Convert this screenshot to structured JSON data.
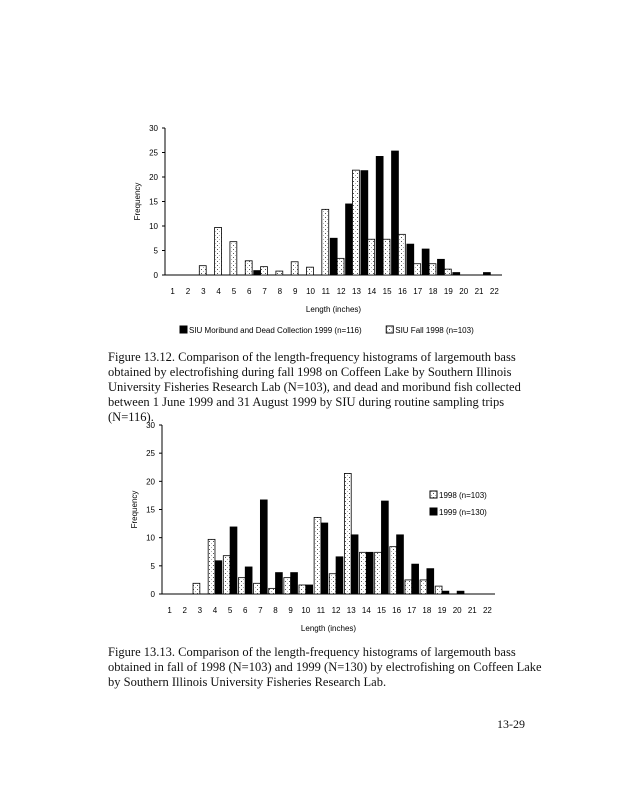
{
  "chart_data": [
    {
      "type": "bar",
      "categories": [
        "1",
        "2",
        "3",
        "4",
        "5",
        "6",
        "7",
        "8",
        "9",
        "10",
        "11",
        "12",
        "13",
        "14",
        "15",
        "16",
        "17",
        "18",
        "19",
        "20",
        "21",
        "22"
      ],
      "series": [
        {
          "name": "SIU Moribund and Dead Collection 1999 (n=116)",
          "color": "#000000",
          "fill": "solid",
          "values": [
            0,
            0,
            0,
            0,
            0,
            0,
            0.9,
            0,
            0,
            0,
            0,
            7.5,
            14.5,
            21.3,
            24.2,
            25.3,
            6.3,
            5.3,
            3.2,
            0.5,
            0,
            0.5
          ]
        },
        {
          "name": "SIU Fall 1998 (n=103)",
          "color": "#ffffff",
          "fill": "stippled",
          "values": [
            0,
            0,
            1.9,
            9.7,
            6.8,
            2.9,
            1.7,
            0.8,
            2.7,
            1.6,
            13.4,
            3.4,
            21.4,
            7.3,
            7.3,
            8.3,
            2.3,
            2.3,
            1.2,
            0,
            0,
            0
          ]
        }
      ],
      "xlabel": "Length (inches)",
      "ylabel": "Frequency",
      "ylim": [
        0,
        30
      ],
      "yticks": [
        0,
        5,
        10,
        15,
        20,
        25,
        30
      ],
      "legend": "bottom",
      "grid": false
    },
    {
      "type": "bar",
      "categories": [
        "1",
        "2",
        "3",
        "4",
        "5",
        "6",
        "7",
        "8",
        "9",
        "10",
        "11",
        "12",
        "13",
        "14",
        "15",
        "16",
        "17",
        "18",
        "19",
        "20",
        "21",
        "22"
      ],
      "series": [
        {
          "name": "1998 (n=103)",
          "color": "#ffffff",
          "fill": "stippled",
          "values": [
            0,
            0,
            1.9,
            9.7,
            6.8,
            2.9,
            1.9,
            1.0,
            2.9,
            1.6,
            13.6,
            3.6,
            21.4,
            7.4,
            7.4,
            8.4,
            2.5,
            2.5,
            1.4,
            0,
            0,
            0
          ]
        },
        {
          "name": "1999 (n=130)",
          "color": "#000000",
          "fill": "solid",
          "values": [
            0,
            0,
            0,
            5.9,
            11.9,
            4.8,
            16.7,
            3.8,
            3.8,
            1.6,
            12.6,
            6.6,
            10.5,
            7.4,
            16.5,
            10.5,
            5.3,
            4.5,
            0.5,
            0.5,
            0,
            0
          ]
        }
      ],
      "xlabel": "Length (inches)",
      "ylabel": "Frequency",
      "ylim": [
        0,
        30
      ],
      "yticks": [
        0,
        5,
        10,
        15,
        20,
        25,
        30
      ],
      "legend": "right",
      "grid": false
    }
  ],
  "captions": {
    "fig1": "Figure 13.12.  Comparison of the length-frequency histograms of largemouth bass obtained by electrofishing during fall 1998 on Coffeen Lake by Southern Illinois University Fisheries Research Lab (N=103), and dead and moribund fish collected between 1 June 1999 and 31 August 1999 by SIU during routine sampling trips (N=116).",
    "fig2": "Figure 13.13.  Comparison of the length-frequency histograms of largemouth bass obtained in fall of 1998 (N=103) and 1999 (N=130) by electrofishing on Coffeen Lake by Southern Illinois University Fisheries Research Lab."
  },
  "page_number": "13-29"
}
